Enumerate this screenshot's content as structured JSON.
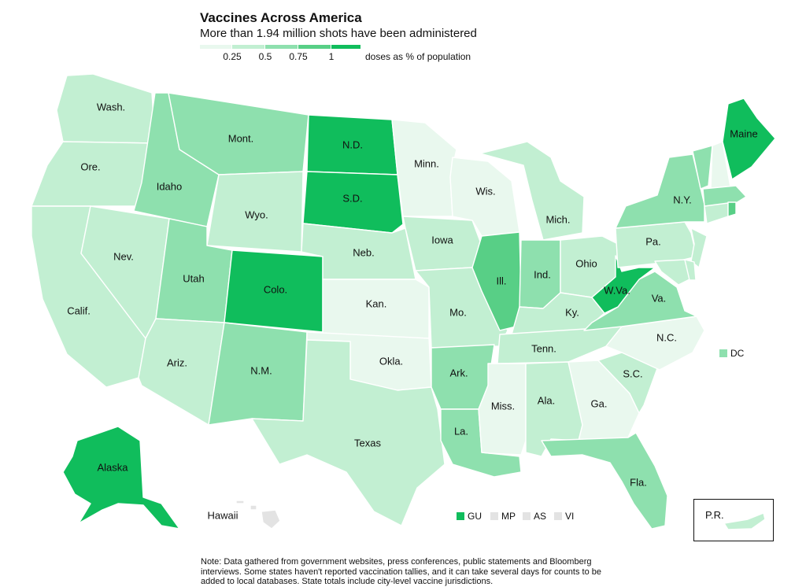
{
  "title": "Vaccines Across America",
  "subtitle": "More than 1.94 million shots have been administered",
  "legend": {
    "ticks": [
      "0.25",
      "0.5",
      "0.75",
      "1"
    ],
    "unit": "doses as % of population",
    "bins": [
      "#e9f8ee",
      "#c2efd2",
      "#8ee0ae",
      "#58cf86",
      "#10bd5c"
    ]
  },
  "colors": {
    "l1": "#e9f8ee",
    "l2": "#c2efd2",
    "l3": "#8ee0ae",
    "l4": "#58cf86",
    "l5": "#10bd5c",
    "gray": "#e3e3e3"
  },
  "states": {
    "wa": {
      "label": "Wash.",
      "level": "l2"
    },
    "or": {
      "label": "Ore.",
      "level": "l2"
    },
    "ca": {
      "label": "Calif.",
      "level": "l2"
    },
    "nv": {
      "label": "Nev.",
      "level": "l2"
    },
    "id": {
      "label": "Idaho",
      "level": "l3"
    },
    "mt": {
      "label": "Mont.",
      "level": "l3"
    },
    "wy": {
      "label": "Wyo.",
      "level": "l2"
    },
    "ut": {
      "label": "Utah",
      "level": "l3"
    },
    "co": {
      "label": "Colo.",
      "level": "l5"
    },
    "az": {
      "label": "Ariz.",
      "level": "l2"
    },
    "nm": {
      "label": "N.M.",
      "level": "l3"
    },
    "nd": {
      "label": "N.D.",
      "level": "l5"
    },
    "sd": {
      "label": "S.D.",
      "level": "l5"
    },
    "ne": {
      "label": "Neb.",
      "level": "l2"
    },
    "ks": {
      "label": "Kan.",
      "level": "l1"
    },
    "ok": {
      "label": "Okla.",
      "level": "l1"
    },
    "tx": {
      "label": "Texas",
      "level": "l2"
    },
    "mn": {
      "label": "Minn.",
      "level": "l1"
    },
    "ia": {
      "label": "Iowa",
      "level": "l2"
    },
    "mo": {
      "label": "Mo.",
      "level": "l2"
    },
    "ar": {
      "label": "Ark.",
      "level": "l3"
    },
    "la": {
      "label": "La.",
      "level": "l3"
    },
    "wi": {
      "label": "Wis.",
      "level": "l1"
    },
    "il": {
      "label": "Ill.",
      "level": "l4"
    },
    "mi": {
      "label": "Mich.",
      "level": "l2"
    },
    "in": {
      "label": "Ind.",
      "level": "l3"
    },
    "oh": {
      "label": "Ohio",
      "level": "l2"
    },
    "ky": {
      "label": "Ky.",
      "level": "l2"
    },
    "tn": {
      "label": "Tenn.",
      "level": "l2"
    },
    "ms": {
      "label": "Miss.",
      "level": "l1"
    },
    "al": {
      "label": "Ala.",
      "level": "l2"
    },
    "ga": {
      "label": "Ga.",
      "level": "l1"
    },
    "fl": {
      "label": "Fla.",
      "level": "l3"
    },
    "sc": {
      "label": "S.C.",
      "level": "l2"
    },
    "nc": {
      "label": "N.C.",
      "level": "l1"
    },
    "va": {
      "label": "Va.",
      "level": "l3"
    },
    "wv": {
      "label": "W.Va.",
      "level": "l5"
    },
    "pa": {
      "label": "Pa.",
      "level": "l2"
    },
    "ny": {
      "label": "N.Y.",
      "level": "l3"
    },
    "me": {
      "label": "Maine",
      "level": "l5"
    },
    "ak": {
      "label": "Alaska",
      "level": "l5"
    },
    "hi": {
      "label": "Hawaii",
      "level": "gray"
    }
  },
  "dc": {
    "label": "DC",
    "level": "l3"
  },
  "pr": {
    "label": "P.R.",
    "level": "l2"
  },
  "territories": [
    {
      "label": "GU",
      "level": "l5"
    },
    {
      "label": "MP",
      "level": "gray"
    },
    {
      "label": "AS",
      "level": "gray"
    },
    {
      "label": "VI",
      "level": "gray"
    }
  ],
  "note": "Note: Data gathered from government websites, press conferences, public statements and Bloomberg interviews. Some states haven't reported vaccination tallies, and it can take several days for counts to be added to local databases. State totals include city-level vaccine jurisdictions."
}
